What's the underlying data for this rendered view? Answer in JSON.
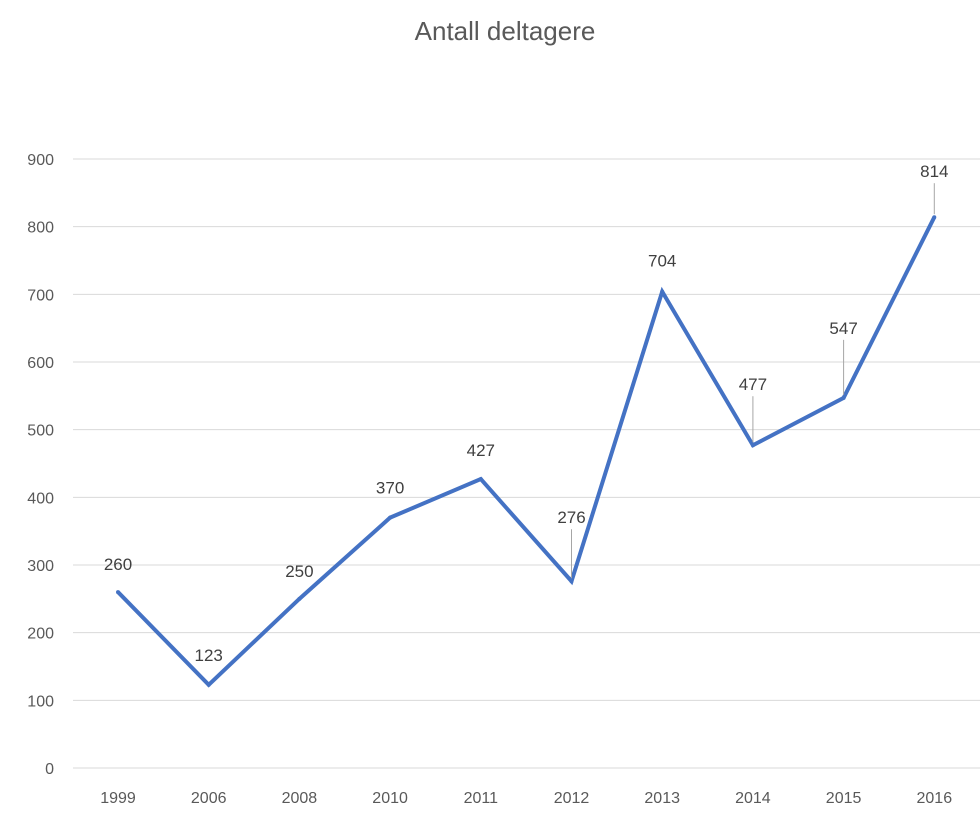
{
  "chart_data": {
    "type": "line",
    "title": "Antall deltagere",
    "xlabel": "",
    "ylabel": "",
    "categories": [
      "1999",
      "2006",
      "2008",
      "2010",
      "2011",
      "2012",
      "2013",
      "2014",
      "2015",
      "2016"
    ],
    "series": [
      {
        "values": [
          260,
          123,
          250,
          370,
          427,
          276,
          704,
          477,
          547,
          814
        ],
        "color": "#4472C4"
      }
    ],
    "ylim": [
      0,
      900
    ],
    "yticks": [
      0,
      100,
      200,
      300,
      400,
      500,
      600,
      700,
      800,
      900
    ],
    "grid": true,
    "legend": "none",
    "data_labels": true
  }
}
